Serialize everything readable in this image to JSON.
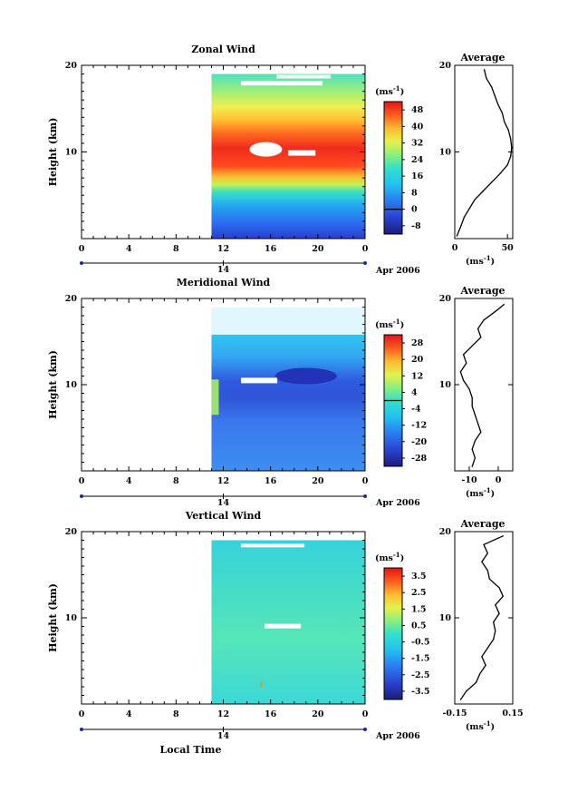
{
  "chart_data": [
    {
      "type": "heatmap",
      "title": "Zonal Wind",
      "ylabel": "Height (km)",
      "xlabel": "",
      "x_ticks": [
        "0",
        "4",
        "8",
        "12",
        "16",
        "20",
        "0"
      ],
      "y_ticks": [
        "20",
        "10"
      ],
      "xlim": [
        0,
        24
      ],
      "ylim": [
        0,
        20
      ],
      "data_start_hour": 11,
      "date_ticks": [
        "14"
      ],
      "date_label": "Apr 2006",
      "colorbar": {
        "unit": "(ms",
        "unit_exp": "-1",
        "ticks": [
          "48",
          "40",
          "32",
          "24",
          "16",
          "8",
          "0",
          "-8"
        ],
        "range": [
          -12,
          52
        ],
        "line_at": 0
      },
      "profile": {
        "title": "Average",
        "x_ticks": [
          "0",
          "50"
        ],
        "xlim": [
          0,
          55
        ],
        "xlabel": "(ms",
        "xlabel_exp": "-1",
        "values": [
          {
            "h": 0.3,
            "v": 2
          },
          {
            "h": 1.5,
            "v": 6
          },
          {
            "h": 2.5,
            "v": 9
          },
          {
            "h": 3.5,
            "v": 14
          },
          {
            "h": 4.5,
            "v": 19
          },
          {
            "h": 5.5,
            "v": 27
          },
          {
            "h": 6.5,
            "v": 35
          },
          {
            "h": 7.5,
            "v": 43
          },
          {
            "h": 8.5,
            "v": 50
          },
          {
            "h": 9.5,
            "v": 53
          },
          {
            "h": 10.5,
            "v": 54
          },
          {
            "h": 11.5,
            "v": 53
          },
          {
            "h": 12.5,
            "v": 51
          },
          {
            "h": 13.5,
            "v": 47
          },
          {
            "h": 14.5,
            "v": 45
          },
          {
            "h": 15.5,
            "v": 41
          },
          {
            "h": 16.5,
            "v": 38
          },
          {
            "h": 17.5,
            "v": 35
          },
          {
            "h": 18.5,
            "v": 30
          },
          {
            "h": 19.5,
            "v": 28
          }
        ]
      }
    },
    {
      "type": "heatmap",
      "title": "Meridional Wind",
      "ylabel": "Height (km)",
      "xlabel": "",
      "x_ticks": [
        "0",
        "4",
        "8",
        "12",
        "16",
        "20",
        "0"
      ],
      "y_ticks": [
        "20",
        "10"
      ],
      "xlim": [
        0,
        24
      ],
      "ylim": [
        0,
        20
      ],
      "data_start_hour": 11,
      "date_ticks": [
        "14"
      ],
      "date_label": "Apr 2006",
      "colorbar": {
        "unit": "(ms",
        "unit_exp": "-1",
        "ticks": [
          "28",
          "20",
          "12",
          "4",
          "-4",
          "-12",
          "-20",
          "-28"
        ],
        "range": [
          -32,
          32
        ],
        "line_at": 0
      },
      "profile": {
        "title": "Average",
        "x_ticks": [
          "-10",
          "0"
        ],
        "xlim": [
          -15,
          5
        ],
        "xlabel": "(ms",
        "xlabel_exp": "-1",
        "values": [
          {
            "h": 0.5,
            "v": -9
          },
          {
            "h": 1.5,
            "v": -8
          },
          {
            "h": 2.5,
            "v": -9
          },
          {
            "h": 3.5,
            "v": -8
          },
          {
            "h": 4.5,
            "v": -6
          },
          {
            "h": 5.5,
            "v": -7
          },
          {
            "h": 6.5,
            "v": -8
          },
          {
            "h": 7.5,
            "v": -9
          },
          {
            "h": 8.5,
            "v": -9
          },
          {
            "h": 9.5,
            "v": -10
          },
          {
            "h": 10.5,
            "v": -12
          },
          {
            "h": 11.5,
            "v": -13
          },
          {
            "h": 12.5,
            "v": -11
          },
          {
            "h": 13.5,
            "v": -12
          },
          {
            "h": 14.5,
            "v": -9
          },
          {
            "h": 15.5,
            "v": -6
          },
          {
            "h": 16.5,
            "v": -7
          },
          {
            "h": 17.5,
            "v": -5
          },
          {
            "h": 18.5,
            "v": -1
          },
          {
            "h": 19.3,
            "v": 2
          }
        ]
      }
    },
    {
      "type": "heatmap",
      "title": "Vertical Wind",
      "ylabel": "Height (km)",
      "xlabel": "Local Time",
      "x_ticks": [
        "0",
        "4",
        "8",
        "12",
        "16",
        "20",
        "0"
      ],
      "y_ticks": [
        "20",
        "10"
      ],
      "xlim": [
        0,
        24
      ],
      "ylim": [
        0,
        20
      ],
      "data_start_hour": 11,
      "date_ticks": [
        "14"
      ],
      "date_label": "Apr 2006",
      "colorbar": {
        "unit": "(ms",
        "unit_exp": "-1",
        "ticks": [
          "3.5",
          "2.5",
          "1.5",
          "0.5",
          "-0.5",
          "-1.5",
          "-2.5",
          "-3.5"
        ],
        "range": [
          -4,
          4
        ]
      },
      "profile": {
        "title": "Average",
        "x_ticks": [
          "-0.15",
          "0.15"
        ],
        "xlim": [
          -0.15,
          0.15
        ],
        "xlabel": "(ms",
        "xlabel_exp": "-1",
        "values": [
          {
            "h": 0.5,
            "v": -0.12
          },
          {
            "h": 1.5,
            "v": -0.09
          },
          {
            "h": 2.5,
            "v": -0.04
          },
          {
            "h": 3.5,
            "v": -0.02
          },
          {
            "h": 4.5,
            "v": 0.01
          },
          {
            "h": 5.5,
            "v": -0.01
          },
          {
            "h": 6.5,
            "v": 0.02
          },
          {
            "h": 7.5,
            "v": 0.05
          },
          {
            "h": 8.5,
            "v": 0.06
          },
          {
            "h": 9.5,
            "v": 0.05
          },
          {
            "h": 10.5,
            "v": 0.08
          },
          {
            "h": 11.5,
            "v": 0.06
          },
          {
            "h": 12.5,
            "v": 0.1
          },
          {
            "h": 13.5,
            "v": 0.08
          },
          {
            "h": 14.5,
            "v": 0.03
          },
          {
            "h": 15.5,
            "v": 0.02
          },
          {
            "h": 16.5,
            "v": -0.01
          },
          {
            "h": 17.5,
            "v": 0.02
          },
          {
            "h": 18.5,
            "v": 0.0
          },
          {
            "h": 19.5,
            "v": 0.1
          }
        ]
      }
    }
  ]
}
